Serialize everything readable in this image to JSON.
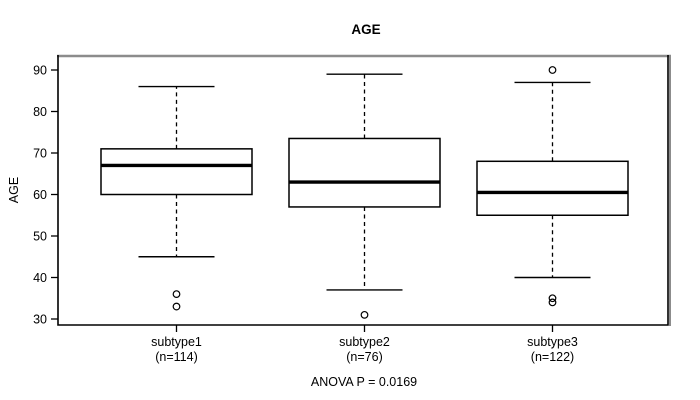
{
  "chart_data": {
    "type": "boxplot",
    "title": "AGE",
    "ylabel": "AGE",
    "xlabel": "",
    "annotation": "ANOVA P = 0.0169",
    "ylim": [
      28,
      93
    ],
    "yticks": [
      30,
      40,
      50,
      60,
      70,
      80,
      90
    ],
    "grid": false,
    "groups": [
      {
        "label": "subtype1",
        "sublabel": "(n=114)",
        "n": 114,
        "whisker_low": 45,
        "q1": 60,
        "median": 67,
        "q3": 71,
        "whisker_high": 86,
        "outliers": [
          36,
          33
        ]
      },
      {
        "label": "subtype2",
        "sublabel": "(n=76)",
        "n": 76,
        "whisker_low": 37,
        "q1": 57,
        "median": 63,
        "q3": 73.5,
        "whisker_high": 89,
        "outliers": [
          31
        ]
      },
      {
        "label": "subtype3",
        "sublabel": "(n=122)",
        "n": 122,
        "whisker_low": 40,
        "q1": 55,
        "median": 60.5,
        "q3": 68,
        "whisker_high": 87,
        "outliers": [
          90,
          35,
          34
        ]
      }
    ],
    "colors": {
      "line": "#000000",
      "frame_shadow": "#8c8c8c",
      "background": "#ffffff"
    }
  }
}
